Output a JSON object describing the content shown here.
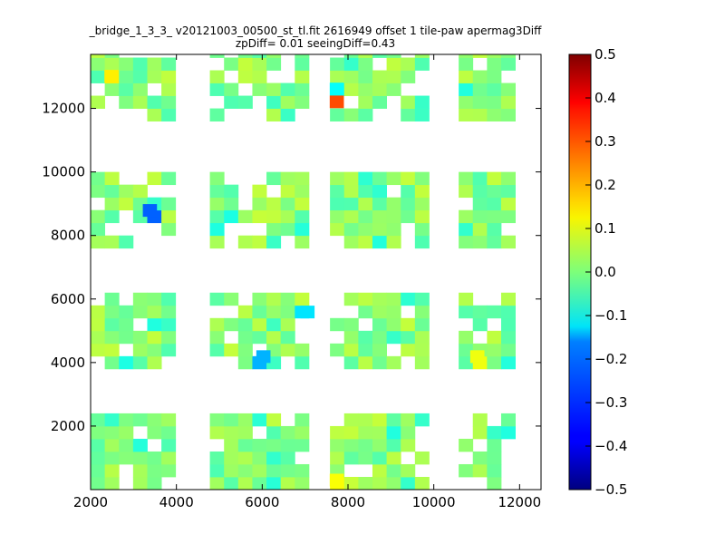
{
  "chart_data": {
    "type": "heatmap",
    "title_line1": "_bridge_1_3_3_ v20121003_00500_st_tl.fit 2616949 offset 1 tile-paw apermag3Diff",
    "title_line2": "zpDiff= 0.01 seeingDiff=0.43",
    "xlim": [
      2000,
      12500
    ],
    "ylim": [
      0,
      13700
    ],
    "x_ticks": [
      "2000",
      "4000",
      "6000",
      "8000",
      "10000",
      "12000"
    ],
    "y_ticks": [
      "2000",
      "4000",
      "6000",
      "8000",
      "10000",
      "12000"
    ],
    "colormap": "jet",
    "clim": [
      -0.5,
      0.5
    ],
    "colorbar_ticks": [
      "0.5",
      "0.4",
      "0.3",
      "0.2",
      "0.1",
      "0.0",
      "−0.1",
      "−0.2",
      "−0.3",
      "−0.4",
      "−0.5"
    ],
    "grid": false,
    "cell_width": 330,
    "cell_height": 400,
    "tiles": [
      {
        "x_start": 2000,
        "cols": 6
      },
      {
        "x_start": 4780,
        "cols": 7
      },
      {
        "x_start": 7580,
        "cols": 7
      },
      {
        "x_start": 10580,
        "cols": 4
      }
    ],
    "row_groups": [
      {
        "y_start": 0,
        "rows": 6
      },
      {
        "y_start": 3800,
        "rows": 6
      },
      {
        "y_start": 7600,
        "rows": 6
      },
      {
        "y_start": 11600,
        "rows": 6
      }
    ],
    "highlights": [
      {
        "x": 7739,
        "y": 12207,
        "value": 0.3
      },
      {
        "x": 7739,
        "y": 12610,
        "value": -0.12
      },
      {
        "x": 3382,
        "y": 8788,
        "value": -0.28
      },
      {
        "x": 7056,
        "y": 5590,
        "value": -0.15
      },
      {
        "x": 6028,
        "y": 4186,
        "value": -0.2
      },
      {
        "x": 2486,
        "y": 13012,
        "value": 0.14
      },
      {
        "x": 7739,
        "y": 300,
        "value": 0.12
      },
      {
        "x": 11015,
        "y": 4186,
        "value": 0.11
      }
    ]
  }
}
